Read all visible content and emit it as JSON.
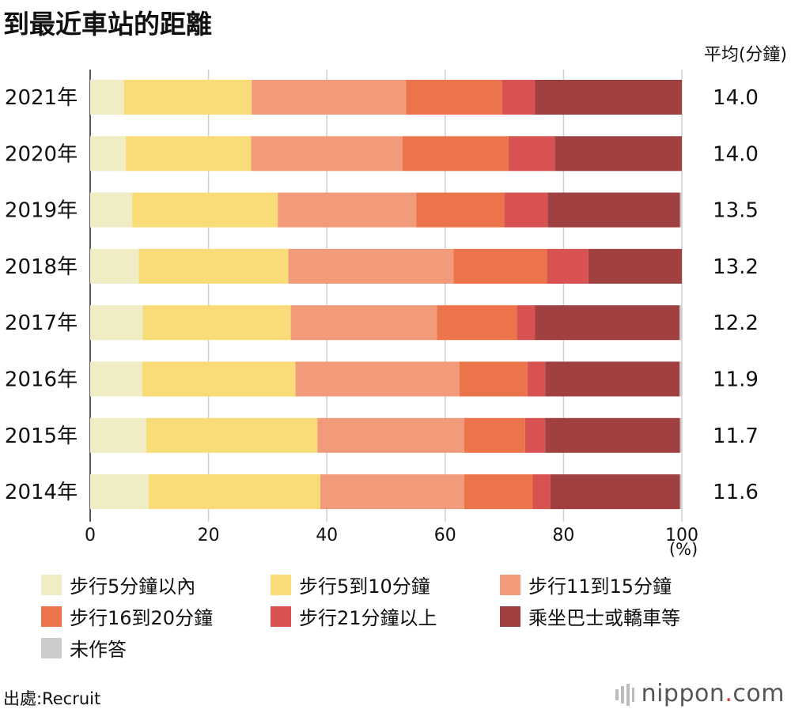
{
  "chart_data": {
    "type": "bar",
    "orientation": "horizontal",
    "stacked": true,
    "title": "到最近車站的距離",
    "avg_label": "平均(分鐘)",
    "unit_label": "(%)",
    "categories": [
      "2021年",
      "2020年",
      "2019年",
      "2018年",
      "2017年",
      "2016年",
      "2015年",
      "2014年"
    ],
    "averages": [
      "14.0",
      "14.0",
      "13.5",
      "13.2",
      "12.2",
      "11.9",
      "11.7",
      "11.6"
    ],
    "xlim": [
      0,
      100
    ],
    "xticks": [
      "0",
      "20",
      "40",
      "60",
      "80",
      "100"
    ],
    "grid": true,
    "legend_position": "bottom",
    "series": [
      {
        "name": "步行5分鐘以內",
        "color": "#f0ecc4",
        "values": [
          5.7,
          6.0,
          7.1,
          8.2,
          8.9,
          8.8,
          9.5,
          9.9
        ]
      },
      {
        "name": "步行5到10分鐘",
        "color": "#f9dc78",
        "values": [
          21.6,
          21.2,
          24.6,
          25.3,
          25.0,
          25.9,
          28.9,
          29.0
        ]
      },
      {
        "name": "步行11到15分鐘",
        "color": "#f29b7a",
        "values": [
          26.1,
          25.6,
          23.4,
          27.9,
          24.7,
          27.7,
          24.8,
          24.3
        ]
      },
      {
        "name": "步行16到20分鐘",
        "color": "#ec744a",
        "values": [
          16.2,
          17.9,
          14.9,
          15.8,
          13.5,
          11.5,
          10.3,
          11.6
        ]
      },
      {
        "name": "步行21分鐘以上",
        "color": "#d85252",
        "values": [
          5.6,
          7.8,
          7.3,
          7.0,
          3.1,
          3.0,
          3.4,
          3.0
        ]
      },
      {
        "name": "乘坐巴士或轎車等",
        "color": "#a04040",
        "values": [
          24.8,
          21.5,
          22.4,
          15.8,
          24.4,
          22.7,
          22.8,
          21.9
        ]
      },
      {
        "name": "未作答",
        "color": "#cccccc",
        "values": [
          0,
          0,
          0.3,
          0,
          0.4,
          0.4,
          0.3,
          0.3
        ]
      }
    ]
  },
  "source": "出處:Recruit",
  "logo": {
    "name": "nippon",
    "dot": ".",
    "tld": "com"
  }
}
